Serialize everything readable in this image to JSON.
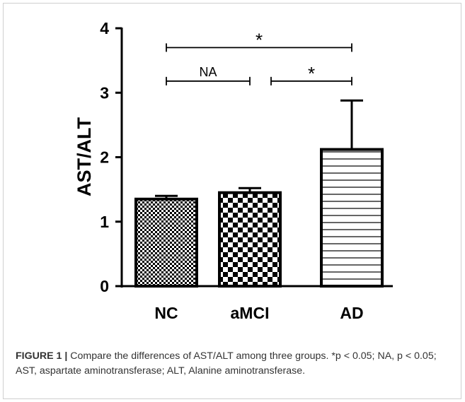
{
  "chart_data": {
    "type": "bar",
    "categories": [
      "NC",
      "aMCI",
      "AD"
    ],
    "values": [
      1.35,
      1.45,
      2.12
    ],
    "errors": [
      0.05,
      0.07,
      0.76
    ],
    "ylabel": "AST/ALT",
    "xlabel": "",
    "ylim": [
      0,
      4
    ],
    "yticks": [
      "0",
      "1",
      "2",
      "3",
      "4"
    ],
    "patterns": [
      "fine-checker",
      "checker",
      "horizontal-lines"
    ],
    "significance": [
      {
        "from": "NC",
        "to": "AD",
        "label": "*",
        "y": 3.7
      },
      {
        "from": "NC",
        "to": "aMCI",
        "label": "NA",
        "y": 3.18
      },
      {
        "from": "aMCI",
        "to": "AD",
        "label": "*",
        "y": 3.18
      }
    ]
  },
  "caption": {
    "label": "FIGURE 1 |",
    "text": " Compare the differences of AST/ALT among three groups. *p < 0.05; NA, p < 0.05; AST, aspartate aminotransferase; ALT, Alanine aminotransferase."
  }
}
